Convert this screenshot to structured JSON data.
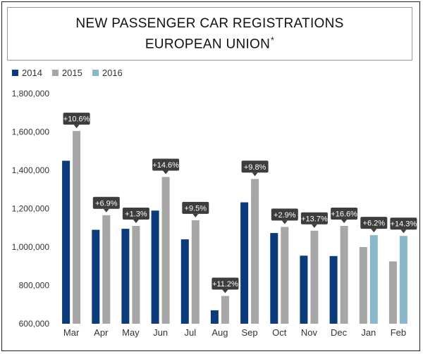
{
  "title": {
    "line1": "NEW PASSENGER CAR REGISTRATIONS",
    "line2": "EUROPEAN UNION",
    "mark": "*"
  },
  "colors": {
    "2014": "#0b3b7a",
    "2015": "#a6a6a6",
    "2016": "#8ab8cb",
    "callout_bg": "#3d3d3d",
    "callout_text": "#ffffff",
    "axis_text": "#333333"
  },
  "chart_data": {
    "type": "bar",
    "title": "NEW PASSENGER CAR REGISTRATIONS EUROPEAN UNION*",
    "categories": [
      "Mar",
      "Apr",
      "May",
      "Jun",
      "Jul",
      "Aug",
      "Sep",
      "Oct",
      "Nov",
      "Dec",
      "Jan",
      "Feb"
    ],
    "series": [
      {
        "name": "2014",
        "values": [
          1450000,
          1090000,
          1095000,
          1190000,
          1040000,
          670000,
          1233000,
          1073000,
          955000,
          953000,
          null,
          null
        ]
      },
      {
        "name": "2015",
        "values": [
          1605000,
          1166000,
          1110000,
          1365000,
          1140000,
          745000,
          1355000,
          1105000,
          1085000,
          1110000,
          1000000,
          925000
        ]
      },
      {
        "name": "2016",
        "values": [
          null,
          null,
          null,
          null,
          null,
          null,
          null,
          null,
          null,
          null,
          1062000,
          1058000
        ]
      }
    ],
    "annotations": [
      "+10.6%",
      "+6.9%",
      "+1.3%",
      "+14.6%",
      "+9.5%",
      "+11.2%",
      "+9.8%",
      "+2.9%",
      "+13.7%",
      "+16.6%",
      "+6.2%",
      "+14.3%"
    ],
    "ylim": [
      600000,
      1800000
    ],
    "yticks": [
      600000,
      800000,
      1000000,
      1200000,
      1400000,
      1600000,
      1800000
    ],
    "ytick_labels": [
      "600,000",
      "800,000",
      "1,000,000",
      "1,200,000",
      "1,400,000",
      "1,600,000",
      "1,800,000"
    ],
    "grid": false,
    "legend_position": "top-left",
    "xlabel": "",
    "ylabel": ""
  }
}
